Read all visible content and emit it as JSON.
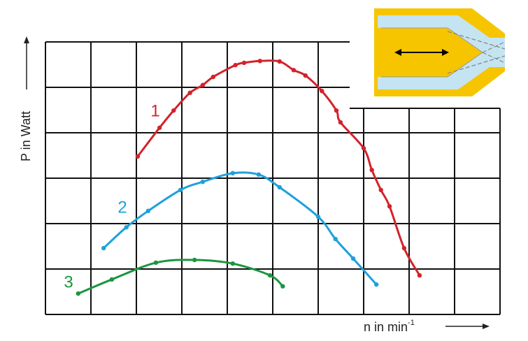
{
  "chart_data": {
    "type": "line",
    "y_label": "P in Watt",
    "x_label": "n in min",
    "x_label_superscript": "-1",
    "xlim": [
      0,
      10
    ],
    "ylim": [
      0,
      6
    ],
    "series": [
      {
        "name": "1",
        "color": "#d2232a",
        "x": [
          2.03,
          2.51,
          2.82,
          3.18,
          3.46,
          3.69,
          4.18,
          4.37,
          4.72,
          5.15,
          5.46,
          5.72,
          6.08,
          6.4,
          6.49,
          7.0,
          7.18,
          7.38,
          7.57,
          7.89,
          8.23
        ],
        "values": [
          3.48,
          4.11,
          4.49,
          4.88,
          5.05,
          5.23,
          5.49,
          5.54,
          5.58,
          5.57,
          5.38,
          5.26,
          4.92,
          4.49,
          4.23,
          3.66,
          3.18,
          2.74,
          2.38,
          1.46,
          0.86
        ]
      },
      {
        "name": "2",
        "color": "#1ea0dc",
        "x": [
          1.28,
          1.78,
          2.26,
          2.97,
          3.46,
          4.12,
          4.69,
          5.15,
          6.0,
          6.38,
          6.77,
          7.28
        ],
        "values": [
          1.46,
          1.92,
          2.28,
          2.74,
          2.92,
          3.11,
          3.08,
          2.8,
          2.15,
          1.66,
          1.23,
          0.66
        ]
      },
      {
        "name": "3",
        "color": "#1a9640",
        "x": [
          0.72,
          1.46,
          2.43,
          3.28,
          4.12,
          4.94,
          5.22
        ],
        "values": [
          0.46,
          0.77,
          1.14,
          1.2,
          1.12,
          0.86,
          0.62
        ]
      }
    ]
  }
}
